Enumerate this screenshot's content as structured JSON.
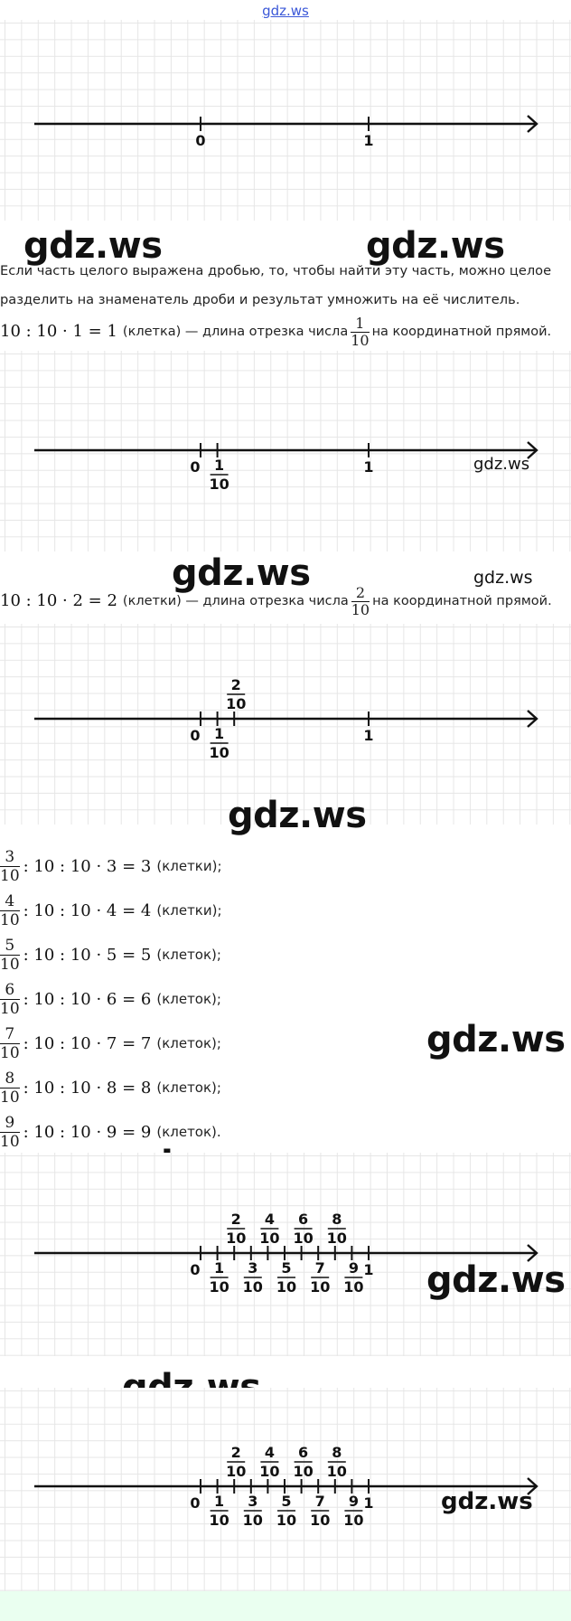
{
  "header": {
    "link": "gdz.ws"
  },
  "watermark": "gdz.ws",
  "paragraph": {
    "line1": "Если часть целого выражена дробью, то, чтобы найти эту часть, можно целое",
    "line2": "разделить на знаменатель дроби и результат умножить на её числитель."
  },
  "example1": {
    "math": "10 : 10 · 1 = 1",
    "unit": "(клетка) — длина отрезка числа",
    "frac_num": "1",
    "frac_den": "10",
    "tail": "на координатной прямой."
  },
  "example2": {
    "math": "10 : 10 · 2 = 2",
    "unit": "(клетки) — длина отрезка числа",
    "frac_num": "2",
    "frac_den": "10",
    "tail": "на координатной прямой."
  },
  "list": [
    {
      "num": "3",
      "den": "10",
      "math": ": 10 : 10 · 3 = 3",
      "unit": "(клетки);"
    },
    {
      "num": "4",
      "den": "10",
      "math": ": 10 : 10 · 4 = 4",
      "unit": "(клетки);"
    },
    {
      "num": "5",
      "den": "10",
      "math": ": 10 : 10 · 5 = 5",
      "unit": "(клеток);"
    },
    {
      "num": "6",
      "den": "10",
      "math": ": 10 : 10 · 6 = 6",
      "unit": "(клеток);"
    },
    {
      "num": "7",
      "den": "10",
      "math": ": 10 : 10 · 7 = 7",
      "unit": "(клеток);"
    },
    {
      "num": "8",
      "den": "10",
      "math": ": 10 : 10 · 8 = 8",
      "unit": "(клеток);"
    },
    {
      "num": "9",
      "den": "10",
      "math": ": 10 : 10 · 9 = 9",
      "unit": "(клеток)."
    }
  ],
  "number_lines": [
    {
      "labels_below": [
        "0",
        "1"
      ],
      "fractions_below": [],
      "fractions_above": []
    },
    {
      "labels_below": [
        "0",
        "1"
      ],
      "fractions_below": [
        "1"
      ],
      "fractions_above": []
    },
    {
      "labels_below": [
        "0",
        "1"
      ],
      "fractions_below": [
        "1"
      ],
      "fractions_above": [
        "2"
      ]
    },
    {
      "labels_below": [
        "0",
        "1"
      ],
      "fractions_below": [
        "1",
        "3",
        "5",
        "7",
        "9"
      ],
      "fractions_above": [
        "2",
        "4",
        "6",
        "8"
      ]
    },
    {
      "labels_below": [
        "0",
        "1"
      ],
      "fractions_below": [
        "1",
        "3",
        "5",
        "7",
        "9"
      ],
      "fractions_above": [
        "2",
        "4",
        "6",
        "8"
      ]
    }
  ],
  "denominator": "10"
}
